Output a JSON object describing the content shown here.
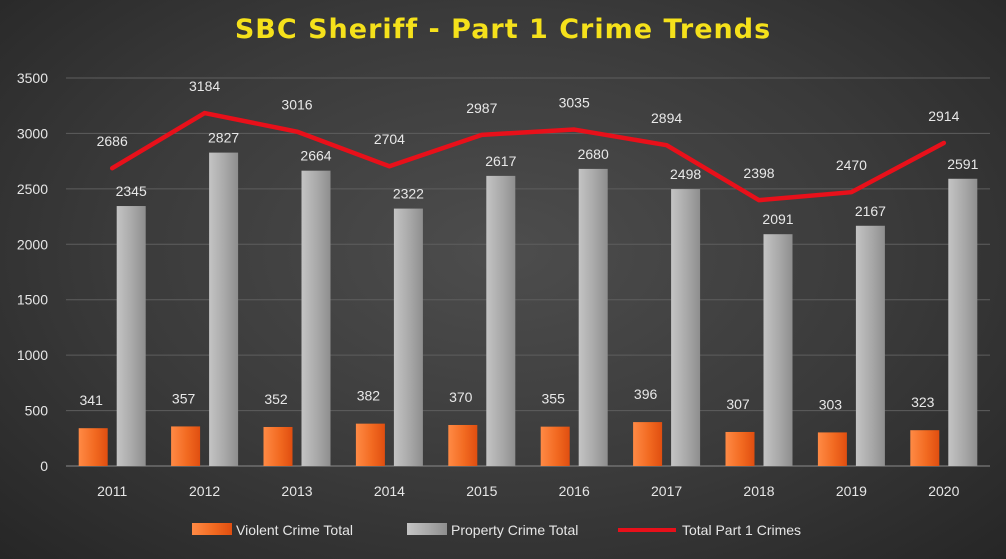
{
  "chart_data": {
    "type": "bar",
    "title": "SBC Sheriff  - Part 1 Crime Trends",
    "categories": [
      "2011",
      "2012",
      "2013",
      "2014",
      "2015",
      "2016",
      "2017",
      "2018",
      "2019",
      "2020"
    ],
    "series": [
      {
        "name": "Violent Crime Total",
        "kind": "bar",
        "color": "#f26a21",
        "values": [
          341,
          357,
          352,
          382,
          370,
          355,
          396,
          307,
          303,
          323
        ]
      },
      {
        "name": "Property Crime Total",
        "kind": "bar",
        "color": "#a6a6a6",
        "values": [
          2345,
          2827,
          2664,
          2322,
          2617,
          2680,
          2498,
          2091,
          2167,
          2591
        ]
      },
      {
        "name": "Total Part 1 Crimes",
        "kind": "line",
        "color": "#e8101a",
        "values": [
          2686,
          3184,
          3016,
          2704,
          2987,
          3035,
          2894,
          2398,
          2470,
          2914
        ]
      }
    ],
    "ylim": [
      0,
      3500
    ],
    "yticks": [
      0,
      500,
      1000,
      1500,
      2000,
      2500,
      3000,
      3500
    ],
    "grid": true,
    "legend": "bottom"
  }
}
